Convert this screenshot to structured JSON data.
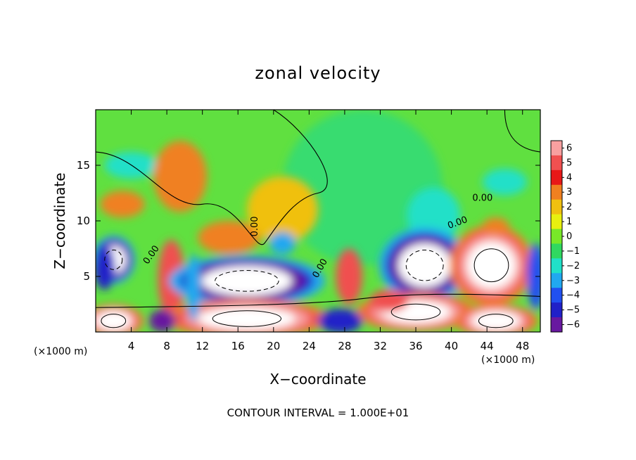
{
  "chart_data": {
    "type": "heatmap",
    "title": "zonal velocity",
    "xlabel": "X−coordinate",
    "ylabel": "Z−coordinate",
    "x_unit_left": "(×1000 m)",
    "x_unit_right": "(×1000 m)",
    "xlim": [
      0,
      50
    ],
    "ylim": [
      0,
      20
    ],
    "x_ticks": [
      4,
      8,
      12,
      16,
      20,
      24,
      28,
      32,
      36,
      40,
      44,
      48
    ],
    "x_tick_labels": [
      "4",
      "8",
      "12",
      "16",
      "20",
      "24",
      "28",
      "32",
      "36",
      "40",
      "44",
      "48"
    ],
    "y_ticks": [
      5,
      10,
      15
    ],
    "y_tick_labels": [
      "5",
      "10",
      "15"
    ],
    "colorbar": {
      "values": [
        6,
        5,
        4,
        3,
        2,
        1,
        0,
        -1,
        -2,
        -3,
        -4,
        -5,
        -6
      ],
      "labels": [
        "6",
        "5",
        "4",
        "3",
        "2",
        "1",
        "0",
        "−1",
        "−2",
        "−3",
        "−4",
        "−5",
        "−6"
      ],
      "colors": [
        "#f8a0a0",
        "#f05050",
        "#e81818",
        "#f08020",
        "#f0c010",
        "#e8f010",
        "#78e828",
        "#30d860",
        "#20e0c8",
        "#20a8f0",
        "#2050f0",
        "#2020c8",
        "#6818a0"
      ]
    },
    "contour_labels": [
      "0.00",
      "0.00",
      "0.00",
      "0.00",
      "0.00"
    ],
    "blobs": [
      {
        "x": 4,
        "z": 15,
        "rx": 3,
        "rz": 1.2,
        "v": -2
      },
      {
        "x": 3,
        "z": 11.5,
        "rx": 2.5,
        "rz": 1.2,
        "v": 2.5
      },
      {
        "x": 9.5,
        "z": 14,
        "rx": 3,
        "rz": 3.2,
        "v": 3
      },
      {
        "x": 15,
        "z": 8.5,
        "rx": 3.5,
        "rz": 1.5,
        "v": 2.5
      },
      {
        "x": 21,
        "z": 11,
        "rx": 4,
        "rz": 3,
        "v": 1.5
      },
      {
        "x": 2,
        "z": 6.5,
        "rx": 1.8,
        "rz": 1.6,
        "v": -9
      },
      {
        "x": 1,
        "z": 5.8,
        "rx": 1.2,
        "rz": 2,
        "v": -5
      },
      {
        "x": 8.5,
        "z": 4.8,
        "rx": 1.5,
        "rz": 3.5,
        "v": 4.5
      },
      {
        "x": 17,
        "z": 4.6,
        "rx": 6.5,
        "rz": 1.7,
        "v": -9
      },
      {
        "x": 21,
        "z": 8,
        "rx": 1.5,
        "rz": 1,
        "v": -3
      },
      {
        "x": 28.5,
        "z": 5,
        "rx": 1.5,
        "rz": 2.5,
        "v": 4.5
      },
      {
        "x": 38,
        "z": 10.5,
        "rx": 3,
        "rz": 2.5,
        "v": -2.5
      },
      {
        "x": 37,
        "z": 6,
        "rx": 3.8,
        "rz": 2.5,
        "v": -9
      },
      {
        "x": 44.5,
        "z": 6,
        "rx": 3.5,
        "rz": 2.7,
        "v": 9
      },
      {
        "x": 46,
        "z": 13.5,
        "rx": 2.5,
        "rz": 1.2,
        "v": -2.5
      },
      {
        "x": 45,
        "z": 9.5,
        "rx": 1.5,
        "rz": 0.8,
        "v": 3
      },
      {
        "x": 17,
        "z": 1.2,
        "rx": 7,
        "rz": 1.3,
        "v": 9
      },
      {
        "x": 2,
        "z": 1,
        "rx": 2.5,
        "rz": 1.1,
        "v": 8
      },
      {
        "x": 7.5,
        "z": 1,
        "rx": 1.5,
        "rz": 1,
        "v": -6
      },
      {
        "x": 36,
        "z": 1.8,
        "rx": 5,
        "rz": 1.3,
        "v": 9
      },
      {
        "x": 33,
        "z": 2.8,
        "rx": 2.2,
        "rz": 1,
        "v": 5
      },
      {
        "x": 45,
        "z": 1,
        "rx": 3.5,
        "rz": 1.1,
        "v": 8
      },
      {
        "x": 27.5,
        "z": 1,
        "rx": 2.5,
        "rz": 1.1,
        "v": -5
      },
      {
        "x": 49.5,
        "z": 5,
        "rx": 1,
        "rz": 3,
        "v": -4
      },
      {
        "x": 11,
        "z": 4,
        "rx": 0.8,
        "rz": 3,
        "v": -3
      }
    ]
  },
  "footer": {
    "contour_interval": "CONTOUR INTERVAL =  1.000E+01"
  }
}
